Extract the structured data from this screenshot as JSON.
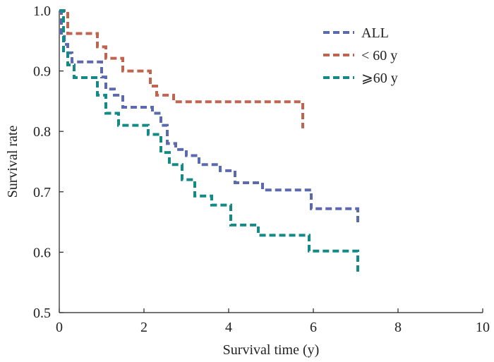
{
  "chart_data": {
    "type": "line",
    "title": "",
    "xlabel": "Survival time (y)",
    "ylabel": "Survival rate",
    "xlim": [
      0,
      10
    ],
    "ylim": [
      0.5,
      1.0
    ],
    "xticks": [
      0,
      2,
      4,
      6,
      8,
      10
    ],
    "yticks": [
      0.5,
      0.6,
      0.7,
      0.8,
      0.9,
      1.0
    ],
    "xtick_labels": [
      "0",
      "2",
      "4",
      "6",
      "8",
      "10"
    ],
    "ytick_labels": [
      "0.5",
      "0.6",
      "0.7",
      "0.8",
      "0.9",
      "1.0"
    ],
    "grid": false,
    "legend_position": "top-right",
    "line_style": "dashed step",
    "series": [
      {
        "name": "ALL",
        "color": "#5b6aaf",
        "x": [
          0,
          0.05,
          0.12,
          0.2,
          0.3,
          0.5,
          0.8,
          1.0,
          1.1,
          1.3,
          1.5,
          2.0,
          2.2,
          2.4,
          2.55,
          2.75,
          3.0,
          3.3,
          3.8,
          4.15,
          4.8,
          5.6,
          5.95,
          6.8,
          7.05
        ],
        "y": [
          1.0,
          0.96,
          0.944,
          0.93,
          0.915,
          0.915,
          0.915,
          0.89,
          0.87,
          0.86,
          0.84,
          0.84,
          0.83,
          0.81,
          0.78,
          0.77,
          0.76,
          0.745,
          0.735,
          0.715,
          0.703,
          0.703,
          0.672,
          0.672,
          0.645
        ]
      },
      {
        "name": "< 60 y",
        "color": "#c0634f",
        "x": [
          0,
          0.2,
          0.6,
          0.9,
          1.1,
          1.5,
          1.7,
          2.15,
          2.3,
          2.7,
          3.0,
          4.0,
          5.0,
          5.6,
          5.75
        ],
        "y": [
          1.0,
          0.962,
          0.962,
          0.94,
          0.921,
          0.9,
          0.9,
          0.875,
          0.86,
          0.849,
          0.849,
          0.849,
          0.849,
          0.849,
          0.805
        ]
      },
      {
        "name": "⩾60 y",
        "color": "#138a85",
        "x": [
          0,
          0.1,
          0.2,
          0.35,
          0.7,
          0.9,
          1.1,
          1.4,
          1.8,
          2.1,
          2.4,
          2.6,
          2.9,
          3.2,
          3.6,
          4.05,
          4.7,
          5.9,
          6.9,
          7.05
        ],
        "y": [
          1.0,
          0.93,
          0.91,
          0.889,
          0.889,
          0.86,
          0.83,
          0.81,
          0.81,
          0.795,
          0.765,
          0.745,
          0.72,
          0.693,
          0.678,
          0.645,
          0.628,
          0.602,
          0.602,
          0.563
        ]
      }
    ]
  }
}
